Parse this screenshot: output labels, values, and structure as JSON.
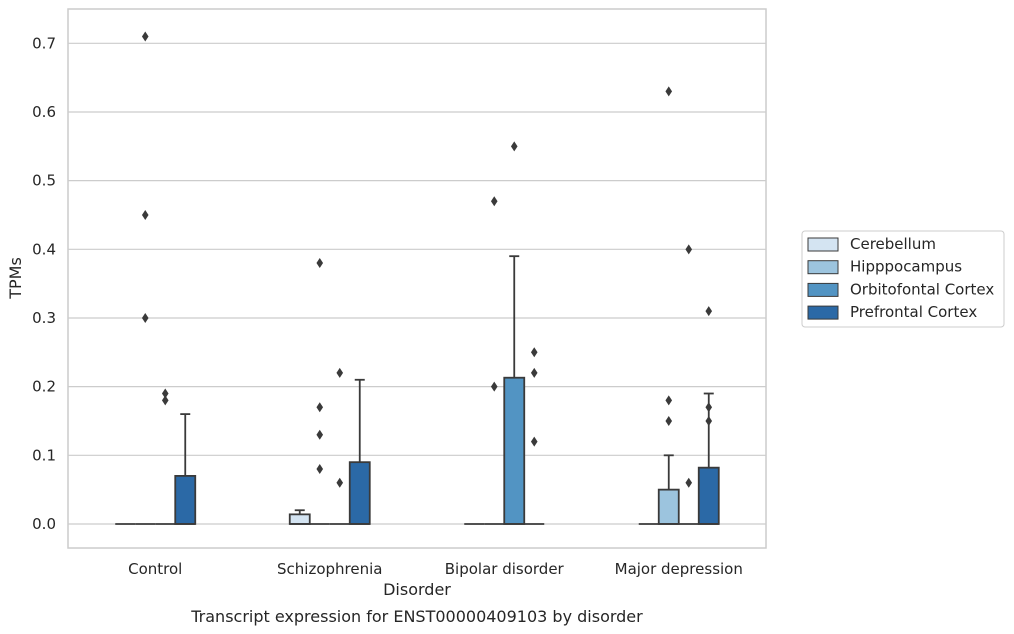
{
  "caption": "Transcript expression for ENST00000409103 by disorder",
  "chart_data": {
    "type": "box",
    "title": "",
    "xlabel": "Disorder",
    "ylabel": "TPMs",
    "ylim": [
      -0.035,
      0.75
    ],
    "yticks": [
      0.0,
      0.1,
      0.2,
      0.3,
      0.4,
      0.5,
      0.6,
      0.7
    ],
    "ytick_labels": [
      "0.0",
      "0.1",
      "0.2",
      "0.3",
      "0.4",
      "0.5",
      "0.6",
      "0.7"
    ],
    "grid": "horizontal",
    "legend_position": "right",
    "categories": [
      "Control",
      "Schizophrenia",
      "Bipolar disorder",
      "Major depression"
    ],
    "series": [
      {
        "name": "Cerebellum",
        "color": "#d4e4f2",
        "boxes": [
          {
            "q1": 0,
            "median": 0,
            "q3": 0,
            "whisker_low": 0,
            "whisker_high": 0,
            "outliers": []
          },
          {
            "q1": 0,
            "median": 0,
            "q3": 0.014,
            "whisker_low": 0,
            "whisker_high": 0.02,
            "outliers": []
          },
          {
            "q1": 0,
            "median": 0,
            "q3": 0,
            "whisker_low": 0,
            "whisker_high": 0,
            "outliers": []
          },
          {
            "q1": 0,
            "median": 0,
            "q3": 0,
            "whisker_low": 0,
            "whisker_high": 0,
            "outliers": []
          }
        ]
      },
      {
        "name": "Hipppocampus",
        "color": "#9cc4de",
        "boxes": [
          {
            "q1": 0,
            "median": 0,
            "q3": 0,
            "whisker_low": 0,
            "whisker_high": 0,
            "outliers": [
              0.3,
              0.45,
              0.71
            ]
          },
          {
            "q1": 0,
            "median": 0,
            "q3": 0,
            "whisker_low": 0,
            "whisker_high": 0,
            "outliers": [
              0.08,
              0.13,
              0.17,
              0.38
            ]
          },
          {
            "q1": 0,
            "median": 0,
            "q3": 0,
            "whisker_low": 0,
            "whisker_high": 0,
            "outliers": [
              0.2,
              0.47
            ]
          },
          {
            "q1": 0,
            "median": 0,
            "q3": 0.05,
            "whisker_low": 0,
            "whisker_high": 0.1,
            "outliers": [
              0.15,
              0.18,
              0.63
            ]
          }
        ]
      },
      {
        "name": "Orbitofontal Cortex",
        "color": "#5294c3",
        "boxes": [
          {
            "q1": 0,
            "median": 0,
            "q3": 0,
            "whisker_low": 0,
            "whisker_high": 0,
            "outliers": [
              0.18,
              0.19
            ]
          },
          {
            "q1": 0,
            "median": 0,
            "q3": 0,
            "whisker_low": 0,
            "whisker_high": 0,
            "outliers": [
              0.06,
              0.22
            ]
          },
          {
            "q1": 0,
            "median": 0,
            "q3": 0.213,
            "whisker_low": 0,
            "whisker_high": 0.39,
            "outliers": [
              0.55
            ]
          },
          {
            "q1": 0,
            "median": 0,
            "q3": 0,
            "whisker_low": 0,
            "whisker_high": 0,
            "outliers": [
              0.06,
              0.4
            ]
          }
        ]
      },
      {
        "name": "Prefrontal Cortex",
        "color": "#2b69a6",
        "boxes": [
          {
            "q1": 0,
            "median": 0,
            "q3": 0.07,
            "whisker_low": 0,
            "whisker_high": 0.16,
            "outliers": []
          },
          {
            "q1": 0,
            "median": 0,
            "q3": 0.09,
            "whisker_low": 0,
            "whisker_high": 0.21,
            "outliers": []
          },
          {
            "q1": 0,
            "median": 0,
            "q3": 0,
            "whisker_low": 0,
            "whisker_high": 0,
            "outliers": [
              0.12,
              0.22,
              0.25
            ]
          },
          {
            "q1": 0,
            "median": 0,
            "q3": 0.082,
            "whisker_low": 0,
            "whisker_high": 0.19,
            "outliers": [
              0.15,
              0.17,
              0.31
            ]
          }
        ]
      }
    ]
  }
}
